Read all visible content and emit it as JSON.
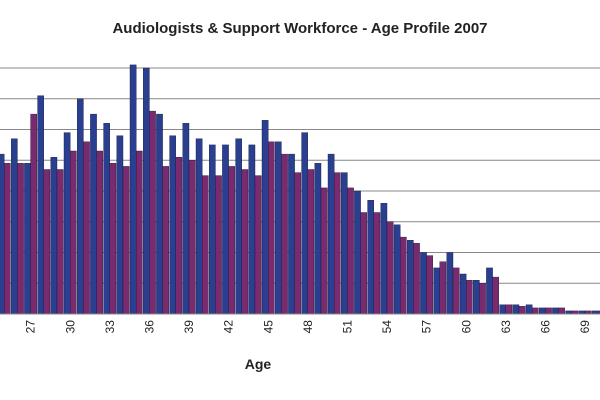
{
  "chart_data": {
    "type": "bar",
    "title": "Audiologists & Support Workforce - Age Profile 2007",
    "xlabel": "Age",
    "ylabel": "",
    "tick_step": 3,
    "grid": true,
    "legend": "none",
    "ylim": [
      0,
      8
    ],
    "categories": [
      25,
      26,
      27,
      28,
      29,
      30,
      31,
      32,
      33,
      34,
      35,
      36,
      37,
      38,
      39,
      40,
      41,
      42,
      43,
      44,
      45,
      46,
      47,
      48,
      49,
      50,
      51,
      52,
      53,
      54,
      55,
      56,
      57,
      58,
      59,
      60,
      61,
      62,
      63,
      64,
      65,
      66,
      67,
      68,
      69,
      70
    ],
    "series": [
      {
        "color": "#2a3f8f",
        "values": [
          5.2,
          5.7,
          4.9,
          7.1,
          5.1,
          5.9,
          7,
          6.5,
          6.2,
          5.8,
          8.1,
          8,
          6.5,
          5.8,
          6.2,
          5.7,
          5.5,
          5.5,
          5.7,
          5.5,
          6.3,
          5.6,
          5.2,
          5.9,
          4.9,
          5.2,
          4.6,
          4,
          3.7,
          3.6,
          2.9,
          2.4,
          2,
          1.5,
          2,
          1.3,
          1.1,
          1.5,
          0.3,
          0.3,
          0.3,
          0.2,
          0.2,
          0.1,
          0.1,
          0.1
        ]
      },
      {
        "color": "#7a2a6e",
        "values": [
          4.9,
          4.9,
          6.5,
          4.7,
          4.7,
          5.3,
          5.6,
          5.3,
          4.9,
          4.8,
          5.3,
          6.6,
          4.8,
          5.1,
          5,
          4.5,
          4.5,
          4.8,
          4.7,
          4.5,
          5.6,
          5.2,
          4.6,
          4.7,
          4.1,
          4.6,
          4.1,
          3.3,
          3.3,
          3,
          2.5,
          2.3,
          1.9,
          1.7,
          1.5,
          1.1,
          1.0,
          1.2,
          0.3,
          0.25,
          0.2,
          0.2,
          0.2,
          0.1,
          0.1,
          0.1
        ]
      }
    ]
  }
}
